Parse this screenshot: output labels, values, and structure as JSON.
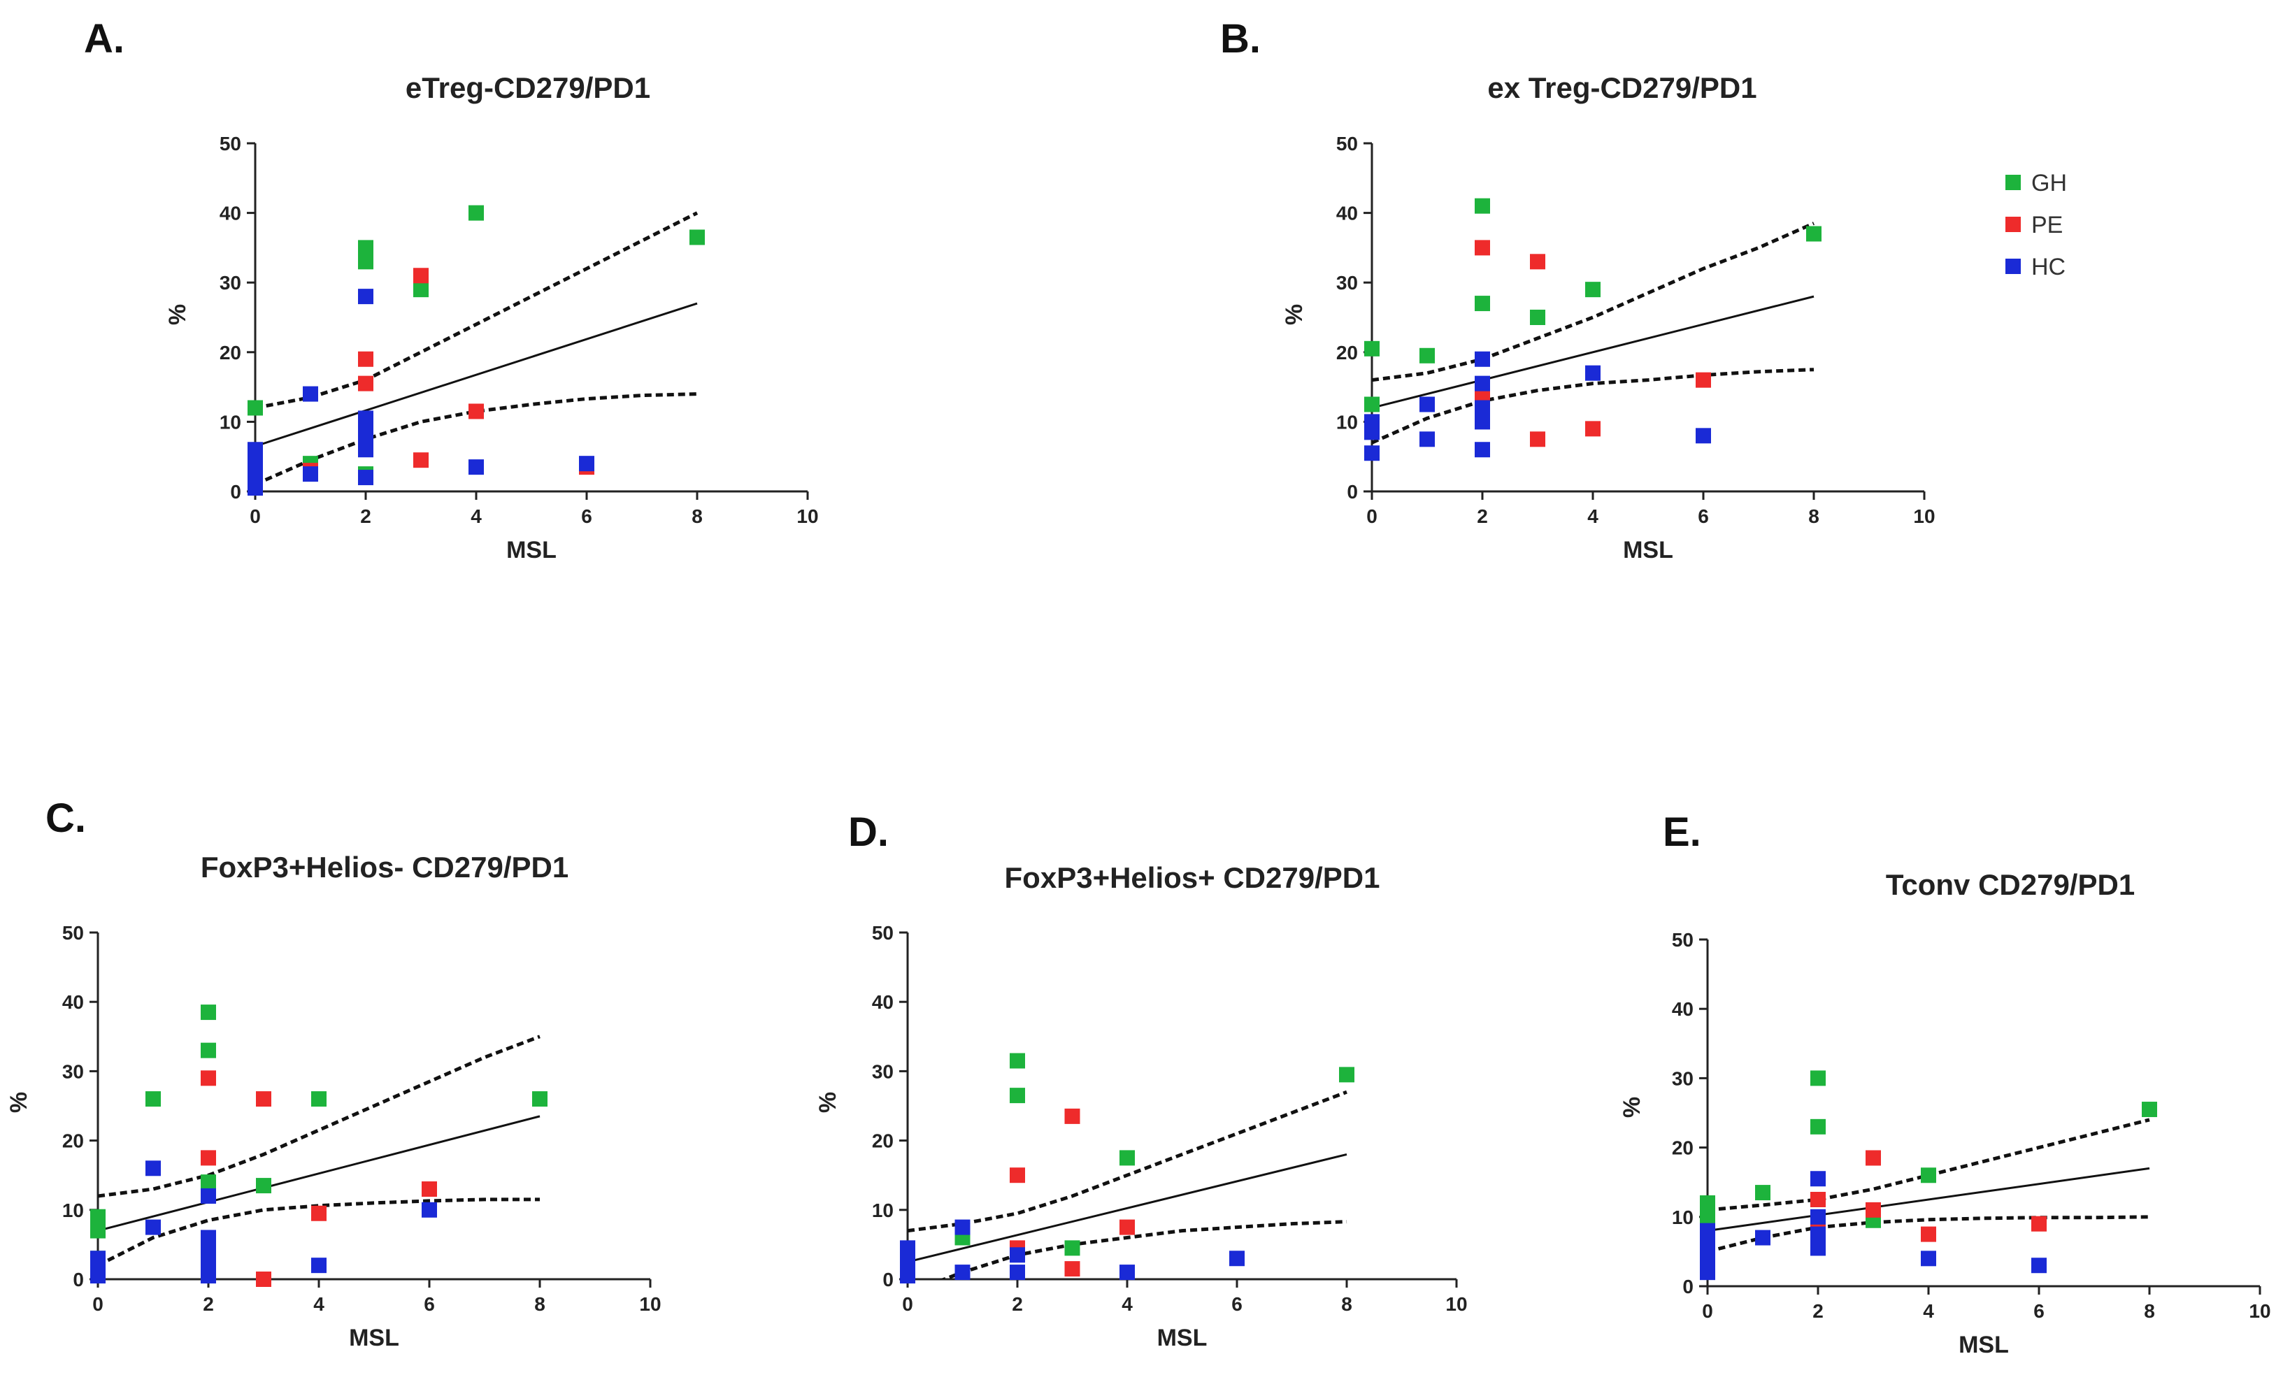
{
  "colors": {
    "GH": "#1db33c",
    "PE": "#ee2b2b",
    "HC": "#1a2ad6"
  },
  "legend": [
    {
      "key": "GH",
      "label": "GH"
    },
    {
      "key": "PE",
      "label": "PE"
    },
    {
      "key": "HC",
      "label": "HC"
    }
  ],
  "chart_data": [
    {
      "id": "A",
      "letter": "A.",
      "type": "scatter",
      "title": "eTreg-CD279/PD1",
      "xlabel": "MSL",
      "ylabel": "%",
      "xlim": [
        0,
        10
      ],
      "ylim": [
        0,
        50
      ],
      "xticks": [
        0,
        2,
        4,
        6,
        8,
        10
      ],
      "yticks": [
        0,
        10,
        20,
        30,
        40,
        50
      ],
      "fit": {
        "x0": 0,
        "x1": 8,
        "y0": 6.5,
        "y1": 27
      },
      "ci_upper": [
        [
          0,
          12
        ],
        [
          1,
          13.5
        ],
        [
          2,
          16
        ],
        [
          3,
          20
        ],
        [
          4,
          24
        ],
        [
          5,
          28
        ],
        [
          6,
          32
        ],
        [
          7,
          36
        ],
        [
          8,
          40
        ]
      ],
      "ci_lower": [
        [
          0,
          1
        ],
        [
          1,
          4.5
        ],
        [
          2,
          7.5
        ],
        [
          3,
          10
        ],
        [
          4,
          11.5
        ],
        [
          5,
          12.5
        ],
        [
          6,
          13.3
        ],
        [
          7,
          13.8
        ],
        [
          8,
          14
        ]
      ],
      "series": [
        {
          "name": "GH",
          "points": [
            [
              0,
              12
            ],
            [
              0,
              5
            ],
            [
              1,
              4
            ],
            [
              2,
              35
            ],
            [
              2,
              33
            ],
            [
              2,
              2.5
            ],
            [
              3,
              29
            ],
            [
              4,
              40
            ],
            [
              8,
              36.5
            ]
          ]
        },
        {
          "name": "PE",
          "points": [
            [
              0,
              3
            ],
            [
              1,
              3
            ],
            [
              2,
              19
            ],
            [
              2,
              15.5
            ],
            [
              3,
              31
            ],
            [
              3,
              4.5
            ],
            [
              4,
              11.5
            ],
            [
              6,
              3.5
            ]
          ]
        },
        {
          "name": "HC",
          "points": [
            [
              0,
              0.5
            ],
            [
              0,
              1.5
            ],
            [
              0,
              3
            ],
            [
              0,
              4.5
            ],
            [
              0,
              6
            ],
            [
              1,
              14
            ],
            [
              1,
              2.5
            ],
            [
              2,
              28
            ],
            [
              2,
              10.5
            ],
            [
              2,
              9
            ],
            [
              2,
              7.5
            ],
            [
              2,
              6
            ],
            [
              2,
              2
            ],
            [
              4,
              3.5
            ],
            [
              6,
              4
            ]
          ]
        }
      ]
    },
    {
      "id": "B",
      "letter": "B.",
      "type": "scatter",
      "title": "ex Treg-CD279/PD1",
      "xlabel": "MSL",
      "ylabel": "%",
      "xlim": [
        0,
        10
      ],
      "ylim": [
        0,
        50
      ],
      "xticks": [
        0,
        2,
        4,
        6,
        8,
        10
      ],
      "yticks": [
        0,
        10,
        20,
        30,
        40,
        50
      ],
      "fit": {
        "x0": 0,
        "x1": 8,
        "y0": 12,
        "y1": 28
      },
      "ci_upper": [
        [
          0,
          16
        ],
        [
          1,
          17
        ],
        [
          2,
          19
        ],
        [
          3,
          22
        ],
        [
          4,
          25
        ],
        [
          5,
          28.5
        ],
        [
          6,
          32
        ],
        [
          7,
          35
        ],
        [
          8,
          38.5
        ]
      ],
      "ci_lower": [
        [
          0,
          7
        ],
        [
          1,
          10.5
        ],
        [
          2,
          13
        ],
        [
          3,
          14.5
        ],
        [
          4,
          15.5
        ],
        [
          5,
          16
        ],
        [
          6,
          16.7
        ],
        [
          7,
          17.2
        ],
        [
          8,
          17.5
        ]
      ],
      "series": [
        {
          "name": "GH",
          "points": [
            [
              0,
              20.5
            ],
            [
              0,
              12.5
            ],
            [
              1,
              19.5
            ],
            [
              2,
              41
            ],
            [
              2,
              27
            ],
            [
              3,
              25
            ],
            [
              4,
              29
            ],
            [
              8,
              37
            ]
          ]
        },
        {
          "name": "PE",
          "points": [
            [
              2,
              35
            ],
            [
              2,
              14
            ],
            [
              3,
              33
            ],
            [
              3,
              7.5
            ],
            [
              4,
              9
            ],
            [
              6,
              16
            ]
          ]
        },
        {
          "name": "HC",
          "points": [
            [
              0,
              10
            ],
            [
              0,
              8.5
            ],
            [
              0,
              5.5
            ],
            [
              1,
              12.5
            ],
            [
              1,
              7.5
            ],
            [
              2,
              19
            ],
            [
              2,
              15.5
            ],
            [
              2,
              12
            ],
            [
              2,
              10
            ],
            [
              2,
              6
            ],
            [
              4,
              17
            ],
            [
              6,
              8
            ]
          ]
        }
      ]
    },
    {
      "id": "C",
      "letter": "C.",
      "type": "scatter",
      "title": "FoxP3+Helios- CD279/PD1",
      "xlabel": "MSL",
      "ylabel": "%",
      "xlim": [
        0,
        10
      ],
      "ylim": [
        0,
        50
      ],
      "xticks": [
        0,
        2,
        4,
        6,
        8,
        10
      ],
      "yticks": [
        0,
        10,
        20,
        30,
        40,
        50
      ],
      "fit": {
        "x0": 0,
        "x1": 8,
        "y0": 7,
        "y1": 23.5
      },
      "ci_upper": [
        [
          0,
          12
        ],
        [
          1,
          13
        ],
        [
          2,
          15
        ],
        [
          3,
          18
        ],
        [
          4,
          21.5
        ],
        [
          5,
          25
        ],
        [
          6,
          28.5
        ],
        [
          7,
          32
        ],
        [
          8,
          35
        ]
      ],
      "ci_lower": [
        [
          0,
          2
        ],
        [
          1,
          6
        ],
        [
          2,
          8.5
        ],
        [
          3,
          10
        ],
        [
          4,
          10.6
        ],
        [
          5,
          11
        ],
        [
          6,
          11.3
        ],
        [
          7,
          11.5
        ],
        [
          8,
          11.5
        ]
      ],
      "series": [
        {
          "name": "GH",
          "points": [
            [
              0,
              9
            ],
            [
              0,
              7
            ],
            [
              0,
              3
            ],
            [
              1,
              26
            ],
            [
              2,
              38.5
            ],
            [
              2,
              33
            ],
            [
              2,
              14
            ],
            [
              3,
              13.5
            ],
            [
              4,
              26
            ],
            [
              8,
              26
            ]
          ]
        },
        {
          "name": "PE",
          "points": [
            [
              2,
              29
            ],
            [
              2,
              17.5
            ],
            [
              3,
              26
            ],
            [
              3,
              0
            ],
            [
              4,
              9.5
            ],
            [
              6,
              13
            ]
          ]
        },
        {
          "name": "HC",
          "points": [
            [
              0,
              3
            ],
            [
              0,
              1.5
            ],
            [
              0,
              0.5
            ],
            [
              1,
              16
            ],
            [
              1,
              7.5
            ],
            [
              2,
              12
            ],
            [
              2,
              6
            ],
            [
              2,
              4.5
            ],
            [
              2,
              3
            ],
            [
              2,
              1.5
            ],
            [
              2,
              0.5
            ],
            [
              4,
              2
            ],
            [
              6,
              10
            ]
          ]
        }
      ]
    },
    {
      "id": "D",
      "letter": "D.",
      "type": "scatter",
      "title": "FoxP3+Helios+ CD279/PD1",
      "xlabel": "MSL",
      "ylabel": "%",
      "xlim": [
        0,
        10
      ],
      "ylim": [
        0,
        50
      ],
      "xticks": [
        0,
        2,
        4,
        6,
        8,
        10
      ],
      "yticks": [
        0,
        10,
        20,
        30,
        40,
        50
      ],
      "fit": {
        "x0": 0,
        "x1": 8,
        "y0": 2.5,
        "y1": 18
      },
      "ci_upper": [
        [
          0,
          7
        ],
        [
          1,
          8
        ],
        [
          2,
          9.5
        ],
        [
          3,
          12
        ],
        [
          4,
          15
        ],
        [
          5,
          18
        ],
        [
          6,
          21
        ],
        [
          7,
          24
        ],
        [
          8,
          27
        ]
      ],
      "ci_lower": [
        [
          0,
          -2
        ],
        [
          1,
          1
        ],
        [
          2,
          3.5
        ],
        [
          3,
          5
        ],
        [
          4,
          6
        ],
        [
          5,
          7
        ],
        [
          6,
          7.5
        ],
        [
          7,
          8
        ],
        [
          8,
          8.3
        ]
      ],
      "series": [
        {
          "name": "GH",
          "points": [
            [
              1,
              6
            ],
            [
              2,
              31.5
            ],
            [
              2,
              26.5
            ],
            [
              3,
              4.5
            ],
            [
              4,
              17.5
            ],
            [
              8,
              29.5
            ]
          ]
        },
        {
          "name": "PE",
          "points": [
            [
              2,
              15
            ],
            [
              2,
              4.5
            ],
            [
              3,
              23.5
            ],
            [
              3,
              1.5
            ],
            [
              4,
              7.5
            ]
          ]
        },
        {
          "name": "HC",
          "points": [
            [
              0,
              4.5
            ],
            [
              0,
              3
            ],
            [
              0,
              1.5
            ],
            [
              0,
              0.5
            ],
            [
              1,
              7.5
            ],
            [
              1,
              1
            ],
            [
              2,
              3.5
            ],
            [
              2,
              1
            ],
            [
              4,
              1
            ],
            [
              6,
              3
            ]
          ]
        }
      ]
    },
    {
      "id": "E",
      "letter": "E.",
      "type": "scatter",
      "title": "Tconv CD279/PD1",
      "xlabel": "MSL",
      "ylabel": "%",
      "xlim": [
        0,
        10
      ],
      "ylim": [
        0,
        50
      ],
      "xticks": [
        0,
        2,
        4,
        6,
        8,
        10
      ],
      "yticks": [
        0,
        10,
        20,
        30,
        40,
        50
      ],
      "fit": {
        "x0": 0,
        "x1": 8,
        "y0": 8,
        "y1": 17
      },
      "ci_upper": [
        [
          0,
          11
        ],
        [
          1,
          11.7
        ],
        [
          2,
          12.5
        ],
        [
          3,
          14
        ],
        [
          4,
          16
        ],
        [
          5,
          18
        ],
        [
          6,
          20
        ],
        [
          7,
          22
        ],
        [
          8,
          24
        ]
      ],
      "ci_lower": [
        [
          0,
          5
        ],
        [
          1,
          7
        ],
        [
          2,
          8.5
        ],
        [
          3,
          9.2
        ],
        [
          4,
          9.6
        ],
        [
          5,
          9.8
        ],
        [
          6,
          9.9
        ],
        [
          7,
          9.9
        ],
        [
          8,
          10
        ]
      ],
      "series": [
        {
          "name": "GH",
          "points": [
            [
              0,
              12
            ],
            [
              0,
              10
            ],
            [
              1,
              13.5
            ],
            [
              2,
              30
            ],
            [
              2,
              23
            ],
            [
              3,
              9.5
            ],
            [
              4,
              16
            ],
            [
              8,
              25.5
            ]
          ]
        },
        {
          "name": "PE",
          "points": [
            [
              2,
              12.5
            ],
            [
              2,
              8.5
            ],
            [
              3,
              18.5
            ],
            [
              3,
              11
            ],
            [
              4,
              7.5
            ],
            [
              6,
              9
            ]
          ]
        },
        {
          "name": "HC",
          "points": [
            [
              0,
              8
            ],
            [
              0,
              6.5
            ],
            [
              0,
              5
            ],
            [
              0,
              3.5
            ],
            [
              0,
              2
            ],
            [
              1,
              7
            ],
            [
              2,
              15.5
            ],
            [
              2,
              10
            ],
            [
              2,
              7.5
            ],
            [
              2,
              5.5
            ],
            [
              4,
              4
            ],
            [
              6,
              3
            ]
          ]
        }
      ]
    }
  ]
}
